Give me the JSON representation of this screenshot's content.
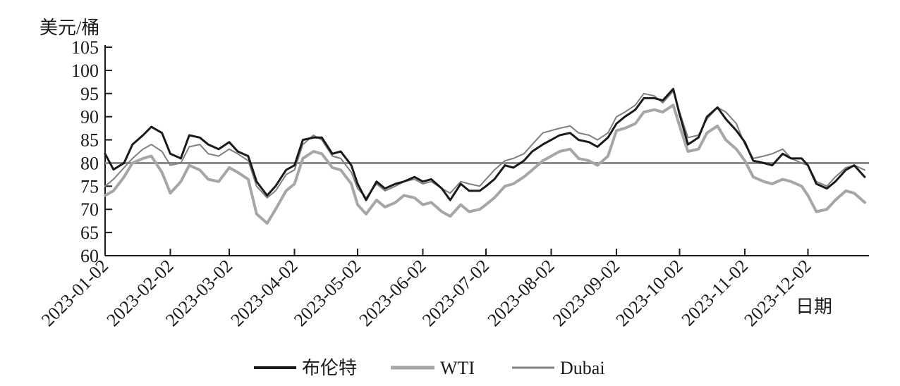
{
  "chart_data": {
    "type": "line",
    "ylabel": "美元/桶",
    "xlabel": "日期",
    "ylim": [
      60,
      105
    ],
    "yticks": [
      60,
      65,
      70,
      75,
      80,
      85,
      90,
      95,
      100,
      105
    ],
    "x_tick_labels": [
      "2023-01-02",
      "2023-02-02",
      "2023-03-02",
      "2023-04-02",
      "2023-05-02",
      "2023-06-02",
      "2023-07-02",
      "2023-08-02",
      "2023-09-02",
      "2023-10-02",
      "2023-11-02",
      "2023-12-02"
    ],
    "reference_line": {
      "y": 80
    },
    "legend": {
      "placement": "bottom-center",
      "labels": [
        "布伦特",
        "WTI",
        "Dubai"
      ]
    },
    "colors": {
      "布伦特": "#1a1a1a",
      "WTI": "#a6a6a6",
      "Dubai": "#7f7f7f",
      "reference": "#8c8c8c"
    },
    "series": [
      {
        "name": "布伦特",
        "points": [
          [
            "2023-01-02",
            82.0
          ],
          [
            "2023-01-06",
            78.6
          ],
          [
            "2023-01-11",
            80.0
          ],
          [
            "2023-01-15",
            84.0
          ],
          [
            "2023-01-20",
            86.0
          ],
          [
            "2023-01-24",
            87.8
          ],
          [
            "2023-01-29",
            86.5
          ],
          [
            "2023-02-02",
            82.0
          ],
          [
            "2023-02-07",
            81.0
          ],
          [
            "2023-02-11",
            86.0
          ],
          [
            "2023-02-16",
            85.5
          ],
          [
            "2023-02-20",
            84.0
          ],
          [
            "2023-02-25",
            83.0
          ],
          [
            "2023-03-02",
            84.5
          ],
          [
            "2023-03-06",
            82.5
          ],
          [
            "2023-03-11",
            81.5
          ],
          [
            "2023-03-15",
            76.0
          ],
          [
            "2023-03-20",
            73.0
          ],
          [
            "2023-03-24",
            75.0
          ],
          [
            "2023-03-29",
            78.5
          ],
          [
            "2023-04-02",
            79.5
          ],
          [
            "2023-04-06",
            85.0
          ],
          [
            "2023-04-11",
            85.5
          ],
          [
            "2023-04-15",
            85.5
          ],
          [
            "2023-04-20",
            82.0
          ],
          [
            "2023-04-24",
            82.5
          ],
          [
            "2023-04-29",
            79.5
          ],
          [
            "2023-05-02",
            75.5
          ],
          [
            "2023-05-06",
            72.0
          ],
          [
            "2023-05-11",
            76.0
          ],
          [
            "2023-05-15",
            74.5
          ],
          [
            "2023-05-20",
            75.5
          ],
          [
            "2023-05-24",
            76.0
          ],
          [
            "2023-05-29",
            77.0
          ],
          [
            "2023-06-02",
            76.0
          ],
          [
            "2023-06-06",
            76.5
          ],
          [
            "2023-06-11",
            74.5
          ],
          [
            "2023-06-15",
            72.0
          ],
          [
            "2023-06-20",
            75.5
          ],
          [
            "2023-06-24",
            74.0
          ],
          [
            "2023-06-29",
            74.0
          ],
          [
            "2023-07-02",
            75.0
          ],
          [
            "2023-07-06",
            76.5
          ],
          [
            "2023-07-11",
            79.5
          ],
          [
            "2023-07-15",
            79.0
          ],
          [
            "2023-07-20",
            80.5
          ],
          [
            "2023-07-24",
            82.5
          ],
          [
            "2023-07-29",
            84.0
          ],
          [
            "2023-08-02",
            85.0
          ],
          [
            "2023-08-06",
            86.0
          ],
          [
            "2023-08-11",
            86.5
          ],
          [
            "2023-08-15",
            85.0
          ],
          [
            "2023-08-20",
            84.5
          ],
          [
            "2023-08-24",
            83.5
          ],
          [
            "2023-08-29",
            85.5
          ],
          [
            "2023-09-02",
            88.5
          ],
          [
            "2023-09-06",
            90.0
          ],
          [
            "2023-09-11",
            91.5
          ],
          [
            "2023-09-15",
            94.0
          ],
          [
            "2023-09-20",
            94.0
          ],
          [
            "2023-09-24",
            93.5
          ],
          [
            "2023-09-29",
            96.0
          ],
          [
            "2023-10-02",
            90.5
          ],
          [
            "2023-10-06",
            84.0
          ],
          [
            "2023-10-11",
            85.5
          ],
          [
            "2023-10-15",
            90.0
          ],
          [
            "2023-10-20",
            92.0
          ],
          [
            "2023-10-24",
            89.5
          ],
          [
            "2023-10-29",
            87.0
          ],
          [
            "2023-11-02",
            84.5
          ],
          [
            "2023-11-06",
            80.5
          ],
          [
            "2023-11-11",
            80.0
          ],
          [
            "2023-11-15",
            79.5
          ],
          [
            "2023-11-20",
            82.0
          ],
          [
            "2023-11-24",
            81.0
          ],
          [
            "2023-11-29",
            81.0
          ],
          [
            "2023-12-02",
            79.5
          ],
          [
            "2023-12-06",
            75.5
          ],
          [
            "2023-12-11",
            74.5
          ],
          [
            "2023-12-15",
            76.0
          ],
          [
            "2023-12-20",
            78.5
          ],
          [
            "2023-12-24",
            79.5
          ],
          [
            "2023-12-29",
            77.0
          ]
        ]
      },
      {
        "name": "WTI",
        "points": [
          [
            "2023-01-02",
            73.0
          ],
          [
            "2023-01-06",
            74.0
          ],
          [
            "2023-01-11",
            77.0
          ],
          [
            "2023-01-15",
            80.0
          ],
          [
            "2023-01-20",
            81.0
          ],
          [
            "2023-01-24",
            81.5
          ],
          [
            "2023-01-29",
            78.0
          ],
          [
            "2023-02-02",
            73.5
          ],
          [
            "2023-02-07",
            76.0
          ],
          [
            "2023-02-11",
            79.5
          ],
          [
            "2023-02-16",
            78.5
          ],
          [
            "2023-02-20",
            76.5
          ],
          [
            "2023-02-25",
            76.0
          ],
          [
            "2023-03-02",
            79.0
          ],
          [
            "2023-03-06",
            78.0
          ],
          [
            "2023-03-11",
            76.5
          ],
          [
            "2023-03-15",
            69.0
          ],
          [
            "2023-03-20",
            67.0
          ],
          [
            "2023-03-24",
            70.0
          ],
          [
            "2023-03-29",
            74.0
          ],
          [
            "2023-04-02",
            75.5
          ],
          [
            "2023-04-06",
            81.0
          ],
          [
            "2023-04-11",
            82.5
          ],
          [
            "2023-04-15",
            82.0
          ],
          [
            "2023-04-20",
            79.0
          ],
          [
            "2023-04-24",
            78.5
          ],
          [
            "2023-04-29",
            75.5
          ],
          [
            "2023-05-02",
            71.0
          ],
          [
            "2023-05-06",
            69.0
          ],
          [
            "2023-05-11",
            72.0
          ],
          [
            "2023-05-15",
            70.5
          ],
          [
            "2023-05-20",
            71.5
          ],
          [
            "2023-05-24",
            73.0
          ],
          [
            "2023-05-29",
            72.5
          ],
          [
            "2023-06-02",
            71.0
          ],
          [
            "2023-06-06",
            71.5
          ],
          [
            "2023-06-11",
            69.5
          ],
          [
            "2023-06-15",
            68.5
          ],
          [
            "2023-06-20",
            71.0
          ],
          [
            "2023-06-24",
            69.5
          ],
          [
            "2023-06-29",
            70.0
          ],
          [
            "2023-07-02",
            71.0
          ],
          [
            "2023-07-06",
            72.5
          ],
          [
            "2023-07-11",
            75.0
          ],
          [
            "2023-07-15",
            75.5
          ],
          [
            "2023-07-20",
            77.0
          ],
          [
            "2023-07-24",
            78.5
          ],
          [
            "2023-07-29",
            80.5
          ],
          [
            "2023-08-02",
            81.5
          ],
          [
            "2023-08-06",
            82.5
          ],
          [
            "2023-08-11",
            83.0
          ],
          [
            "2023-08-15",
            81.0
          ],
          [
            "2023-08-20",
            80.5
          ],
          [
            "2023-08-24",
            79.5
          ],
          [
            "2023-08-29",
            81.5
          ],
          [
            "2023-09-02",
            87.0
          ],
          [
            "2023-09-06",
            87.5
          ],
          [
            "2023-09-11",
            88.5
          ],
          [
            "2023-09-15",
            91.0
          ],
          [
            "2023-09-20",
            91.5
          ],
          [
            "2023-09-24",
            91.0
          ],
          [
            "2023-09-29",
            92.5
          ],
          [
            "2023-10-02",
            88.0
          ],
          [
            "2023-10-06",
            82.5
          ],
          [
            "2023-10-11",
            83.0
          ],
          [
            "2023-10-15",
            86.5
          ],
          [
            "2023-10-20",
            88.0
          ],
          [
            "2023-10-24",
            85.0
          ],
          [
            "2023-10-29",
            83.0
          ],
          [
            "2023-11-02",
            80.5
          ],
          [
            "2023-11-06",
            77.0
          ],
          [
            "2023-11-11",
            76.0
          ],
          [
            "2023-11-15",
            75.5
          ],
          [
            "2023-11-20",
            76.5
          ],
          [
            "2023-11-24",
            76.0
          ],
          [
            "2023-11-29",
            75.0
          ],
          [
            "2023-12-02",
            73.0
          ],
          [
            "2023-12-06",
            69.5
          ],
          [
            "2023-12-11",
            70.0
          ],
          [
            "2023-12-15",
            72.0
          ],
          [
            "2023-12-20",
            74.0
          ],
          [
            "2023-12-24",
            73.5
          ],
          [
            "2023-12-29",
            71.5
          ]
        ]
      },
      {
        "name": "Dubai",
        "points": [
          [
            "2023-01-02",
            75.0
          ],
          [
            "2023-01-06",
            76.5
          ],
          [
            "2023-01-11",
            79.0
          ],
          [
            "2023-01-15",
            81.0
          ],
          [
            "2023-01-20",
            83.0
          ],
          [
            "2023-01-24",
            84.0
          ],
          [
            "2023-01-29",
            82.5
          ],
          [
            "2023-02-02",
            79.5
          ],
          [
            "2023-02-07",
            80.0
          ],
          [
            "2023-02-11",
            83.5
          ],
          [
            "2023-02-16",
            84.0
          ],
          [
            "2023-02-20",
            82.0
          ],
          [
            "2023-02-25",
            81.5
          ],
          [
            "2023-03-02",
            83.0
          ],
          [
            "2023-03-06",
            82.0
          ],
          [
            "2023-03-11",
            80.5
          ],
          [
            "2023-03-15",
            75.0
          ],
          [
            "2023-03-20",
            72.5
          ],
          [
            "2023-03-24",
            74.0
          ],
          [
            "2023-03-29",
            77.5
          ],
          [
            "2023-04-02",
            78.5
          ],
          [
            "2023-04-06",
            84.0
          ],
          [
            "2023-04-11",
            86.0
          ],
          [
            "2023-04-15",
            85.0
          ],
          [
            "2023-04-20",
            81.5
          ],
          [
            "2023-04-24",
            81.0
          ],
          [
            "2023-04-29",
            78.0
          ],
          [
            "2023-05-02",
            74.5
          ],
          [
            "2023-05-06",
            72.5
          ],
          [
            "2023-05-11",
            75.5
          ],
          [
            "2023-05-15",
            74.0
          ],
          [
            "2023-05-20",
            75.0
          ],
          [
            "2023-05-24",
            76.0
          ],
          [
            "2023-05-29",
            76.5
          ],
          [
            "2023-06-02",
            75.5
          ],
          [
            "2023-06-06",
            76.0
          ],
          [
            "2023-06-11",
            74.5
          ],
          [
            "2023-06-15",
            73.5
          ],
          [
            "2023-06-20",
            76.0
          ],
          [
            "2023-06-24",
            75.5
          ],
          [
            "2023-06-29",
            75.0
          ],
          [
            "2023-07-02",
            76.5
          ],
          [
            "2023-07-06",
            78.5
          ],
          [
            "2023-07-11",
            80.5
          ],
          [
            "2023-07-15",
            81.0
          ],
          [
            "2023-07-20",
            82.0
          ],
          [
            "2023-07-24",
            84.0
          ],
          [
            "2023-07-29",
            86.5
          ],
          [
            "2023-08-02",
            87.0
          ],
          [
            "2023-08-06",
            87.5
          ],
          [
            "2023-08-11",
            88.0
          ],
          [
            "2023-08-15",
            86.5
          ],
          [
            "2023-08-20",
            86.0
          ],
          [
            "2023-08-24",
            85.0
          ],
          [
            "2023-08-29",
            86.5
          ],
          [
            "2023-09-02",
            90.0
          ],
          [
            "2023-09-06",
            91.0
          ],
          [
            "2023-09-11",
            92.5
          ],
          [
            "2023-09-15",
            95.0
          ],
          [
            "2023-09-20",
            94.5
          ],
          [
            "2023-09-24",
            93.0
          ],
          [
            "2023-09-29",
            95.5
          ],
          [
            "2023-10-02",
            91.0
          ],
          [
            "2023-10-06",
            85.5
          ],
          [
            "2023-10-11",
            86.0
          ],
          [
            "2023-10-15",
            89.5
          ],
          [
            "2023-10-20",
            92.0
          ],
          [
            "2023-10-24",
            91.0
          ],
          [
            "2023-10-29",
            88.5
          ],
          [
            "2023-11-02",
            84.0
          ],
          [
            "2023-11-06",
            81.0
          ],
          [
            "2023-11-11",
            81.5
          ],
          [
            "2023-11-15",
            82.0
          ],
          [
            "2023-11-20",
            83.0
          ],
          [
            "2023-11-24",
            81.0
          ],
          [
            "2023-11-29",
            80.0
          ],
          [
            "2023-12-02",
            79.5
          ],
          [
            "2023-12-06",
            76.0
          ],
          [
            "2023-12-11",
            75.0
          ],
          [
            "2023-12-15",
            77.0
          ],
          [
            "2023-12-20",
            79.0
          ],
          [
            "2023-12-24",
            79.5
          ],
          [
            "2023-12-29",
            78.5
          ]
        ]
      }
    ]
  }
}
